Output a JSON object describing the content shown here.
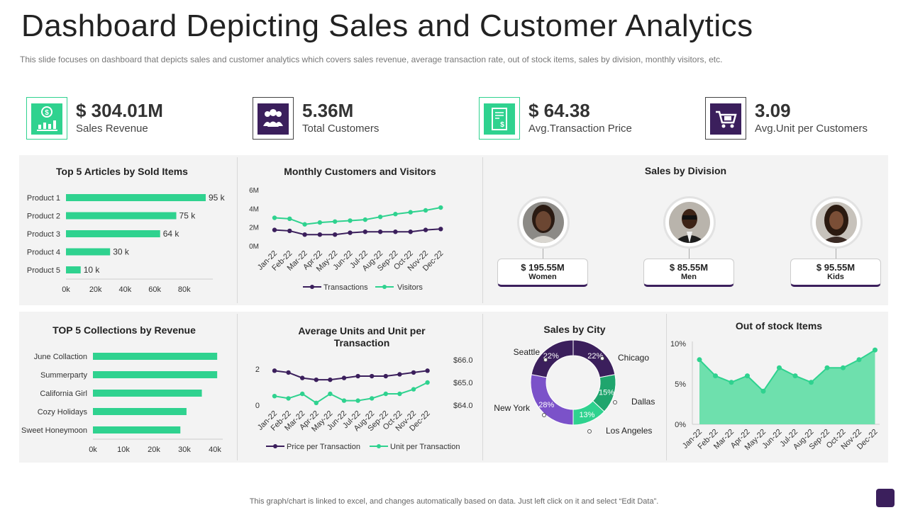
{
  "title": "Dashboard Depicting Sales and Customer Analytics",
  "subtitle": "This slide focuses on dashboard  that depicts sales and customer analytics which covers sales revenue,  average  transaction rate, out of stock items, sales by division,  monthly visitors,  etc.",
  "colors": {
    "green": "#2fd28f",
    "purple": "#3b1f5c",
    "purple_light": "#7b52c9",
    "green_dark": "#1fa56d",
    "area": "#6ee0ad",
    "panel": "#f3f3f3"
  },
  "kpis": [
    {
      "value": "$ 304.01M",
      "label": "Sales Revenue",
      "icon": "money-bar-chart-icon"
    },
    {
      "value": "5.36M",
      "label": "Total Customers",
      "icon": "customers-group-icon"
    },
    {
      "value": "$ 64.38",
      "label": "Avg.Transaction Price",
      "icon": "receipt-dollar-icon"
    },
    {
      "value": "3.09",
      "label": "Avg.Unit per Customers",
      "icon": "shopping-cart-icon"
    }
  ],
  "division": {
    "title": "Sales by Division",
    "cards": [
      {
        "value": "$ 195.55M",
        "label": "Women"
      },
      {
        "value": "$ 85.55M",
        "label": "Men"
      },
      {
        "value": "$ 95.55M",
        "label": "Kids"
      }
    ]
  },
  "footer": "This graph/chart is linked to excel,  and changes automatically based on data. Just left click on it and select “Edit Data”.",
  "chart_data": [
    {
      "id": "articles",
      "type": "bar",
      "orientation": "horizontal",
      "title": "Top 5 Articles by Sold Items",
      "categories": [
        "Product 1",
        "Product 2",
        "Product 3",
        "Product 4",
        "Product 5"
      ],
      "values": [
        95,
        75,
        64,
        30,
        10
      ],
      "data_labels": [
        "95 k",
        "75 k",
        "64 k",
        "30 k",
        "10 k"
      ],
      "xticks": [
        "0k",
        "20k",
        "40k",
        "60k",
        "80k"
      ],
      "xlim": [
        0,
        95
      ]
    },
    {
      "id": "monthly",
      "type": "line",
      "title": "Monthly Customers and Visitors",
      "x": [
        "Jan-22",
        "Feb-22",
        "Mar-22",
        "Apr-22",
        "May-22",
        "Jun-22",
        "Jul-22",
        "Aug-22",
        "Sep-22",
        "Oct-22",
        "Nov-22",
        "Dec-22"
      ],
      "series": [
        {
          "name": "Transactions",
          "values": [
            1.7,
            1.6,
            1.2,
            1.2,
            1.2,
            1.4,
            1.5,
            1.5,
            1.5,
            1.5,
            1.7,
            1.8
          ]
        },
        {
          "name": "Visitors",
          "values": [
            3.0,
            2.9,
            2.3,
            2.5,
            2.6,
            2.7,
            2.8,
            3.1,
            3.4,
            3.6,
            3.8,
            4.1
          ]
        }
      ],
      "yticks": [
        "0M",
        "2M",
        "4M",
        "6M"
      ],
      "ylim": [
        0,
        6
      ]
    },
    {
      "id": "collections",
      "type": "bar",
      "orientation": "horizontal",
      "title": "TOP 5 Collections by Revenue",
      "categories": [
        "June Collaction",
        "Summerparty",
        "California Girl",
        "Cozy Holidays",
        "Sweet Honeymoon"
      ],
      "values": [
        40.5,
        40.5,
        35.5,
        30.5,
        28.5
      ],
      "xticks": [
        "0k",
        "10k",
        "20k",
        "30k",
        "40k"
      ],
      "xlim": [
        0,
        40
      ]
    },
    {
      "id": "units",
      "type": "line",
      "title": "Average Units and Unit per Transaction",
      "x": [
        "Jan-22",
        "Feb-22",
        "Mar-22",
        "Apr-22",
        "May-22",
        "Jun-22",
        "Jul-22",
        "Aug-22",
        "Sep-22",
        "Oct-22",
        "Nov-22",
        "Dec-22"
      ],
      "series": [
        {
          "name": "Price per Transaction",
          "axis": "left",
          "values": [
            1.9,
            1.8,
            1.5,
            1.4,
            1.4,
            1.5,
            1.6,
            1.6,
            1.6,
            1.7,
            1.8,
            1.9
          ]
        },
        {
          "name": "Unit per Transaction",
          "axis": "right",
          "values": [
            64.4,
            64.3,
            64.5,
            64.1,
            64.5,
            64.2,
            64.2,
            64.3,
            64.5,
            64.5,
            64.7,
            65.0
          ]
        }
      ],
      "yticks_left": [
        "0",
        "2"
      ],
      "ylim_left": [
        0,
        2.5
      ],
      "yticks_right": [
        "$64.0",
        "$65.0",
        "$66.0"
      ],
      "ylim_right": [
        64.0,
        66.0
      ]
    },
    {
      "id": "city",
      "type": "pie",
      "donut": true,
      "title": "Sales by City",
      "labels": [
        "Chicago",
        "Dallas",
        "Los Angeles",
        "New York",
        "Seattle"
      ],
      "values": [
        22,
        15,
        13,
        28,
        22
      ],
      "pct_labels": [
        "22%",
        "15%",
        "13%",
        "28%",
        "22%"
      ]
    },
    {
      "id": "stock",
      "type": "area",
      "title": "Out of stock Items",
      "x": [
        "Jan-22",
        "Feb-22",
        "Mar-22",
        "Apr-22",
        "May-22",
        "Jun-22",
        "Jul-22",
        "Aug-22",
        "Sep-22",
        "Oct-22",
        "Nov-22",
        "Dec-22"
      ],
      "values": [
        8.0,
        6.0,
        5.2,
        6.0,
        4.1,
        7.0,
        6.0,
        5.2,
        7.0,
        7.0,
        8.0,
        9.2
      ],
      "yticks": [
        "0%",
        "5%",
        "10%"
      ],
      "ylim": [
        0,
        10
      ]
    }
  ]
}
